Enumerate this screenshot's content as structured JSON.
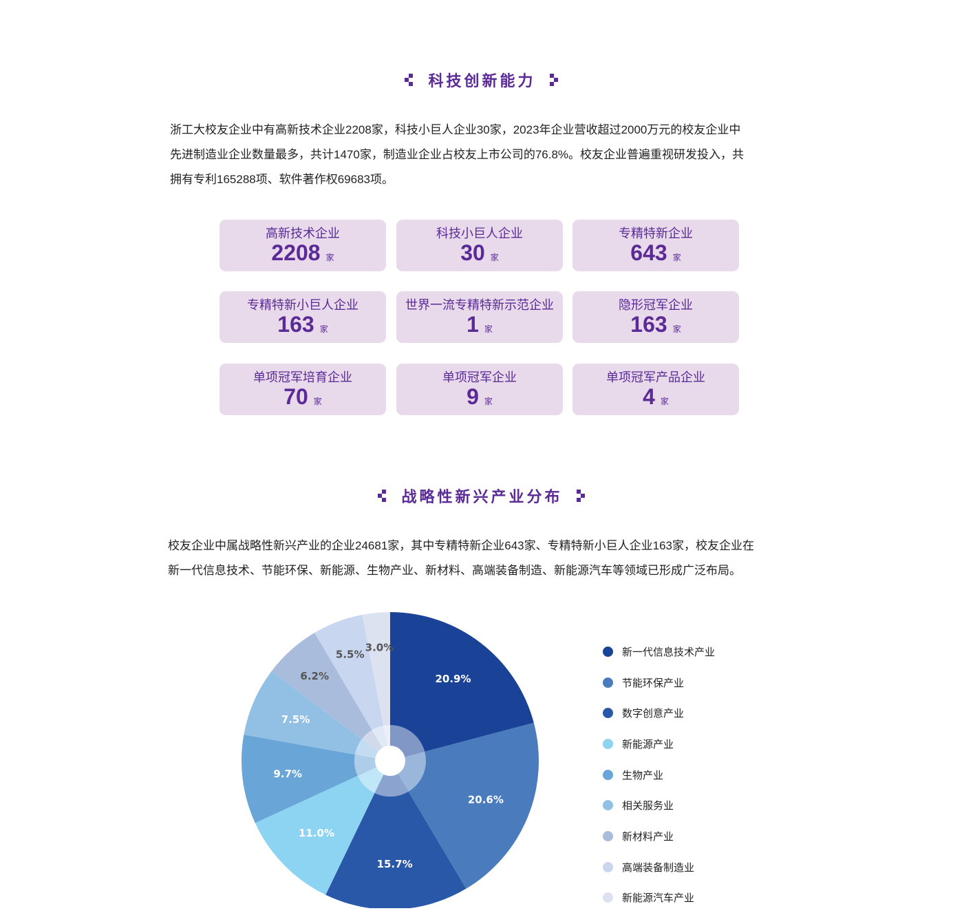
{
  "section1": {
    "title": "科技创新能力",
    "para_lines": [
      "浙工大校友企业中有高新技术企业2208家，科技小巨人企业30家，2023年企业营收超过2000万元的校友企业中",
      "先进制造业企业数量最多，共计1470家，制造业企业占校友上市公司的76.8%。校友企业普遍重视研发投入，共",
      "拥有专利165288项、软件著作权69683项。"
    ],
    "cards": [
      {
        "label": "高新技术企业",
        "value": "2208",
        "unit": "家"
      },
      {
        "label": "科技小巨人企业",
        "value": "30",
        "unit": "家"
      },
      {
        "label": "专精特新企业",
        "value": "643",
        "unit": "家"
      },
      {
        "label": "专精特新小巨人企业",
        "value": "163",
        "unit": "家"
      },
      {
        "label": "世界一流专精特新示范企业",
        "value": "1",
        "unit": "家"
      },
      {
        "label": "隐形冠军企业",
        "value": "163",
        "unit": "家"
      },
      {
        "label": "单项冠军培育企业",
        "value": "70",
        "unit": "家"
      },
      {
        "label": "单项冠军企业",
        "value": "9",
        "unit": "家"
      },
      {
        "label": "单项冠军产品企业",
        "value": "4",
        "unit": "家"
      }
    ]
  },
  "section2": {
    "title": "战略性新兴产业分布",
    "para_lines": [
      "校友企业中属战略性新兴产业的企业24681家，其中专精特新企业643家、专精特新小巨人企业163家，校友企业在",
      "新一代信息技术、节能环保、新能源、生物产业、新材料、高端装备制造、新能源汽车等领域已形成广泛布局。"
    ]
  },
  "colors": {
    "accent": "#5a2a96",
    "card_bg": "#e8d9eb"
  },
  "chart_data": {
    "type": "pie",
    "categories": [
      "新一代信息技术产业",
      "节能环保产业",
      "数字创意产业",
      "新能源产业",
      "生物产业",
      "相关服务业",
      "新材料产业",
      "高端装备制造业",
      "新能源汽车产业"
    ],
    "values": [
      20.9,
      20.6,
      15.7,
      11.0,
      9.7,
      7.5,
      6.2,
      5.5,
      3.0
    ],
    "labels": [
      "20.9%",
      "20.6%",
      "15.7%",
      "11.0%",
      "9.7%",
      "7.5%",
      "6.2%",
      "5.5%",
      "3.0%"
    ],
    "colors": [
      "#1a4397",
      "#4a7bbd",
      "#2a58a8",
      "#8dd3f2",
      "#6aa5d8",
      "#92c0e5",
      "#a9bcdb",
      "#c8d7ef",
      "#dde2f1"
    ],
    "label_colors": [
      "#ffffff",
      "#ffffff",
      "#ffffff",
      "#ffffff",
      "#ffffff",
      "#ffffff",
      "#555555",
      "#555555",
      "#555555"
    ],
    "legend_position": "right"
  }
}
